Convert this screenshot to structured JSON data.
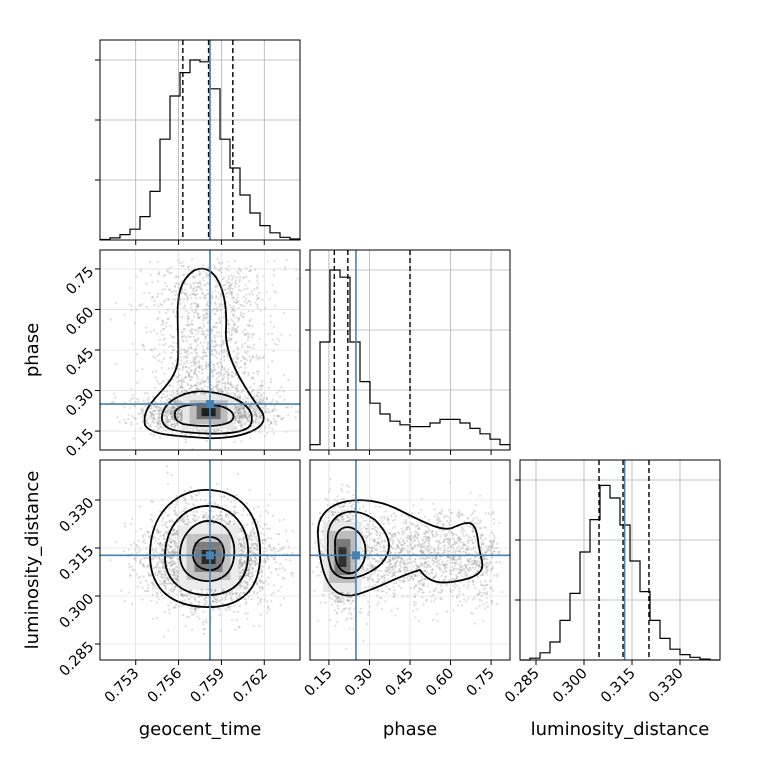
{
  "chart_data": {
    "type": "corner",
    "title": "",
    "parameters": [
      {
        "name": "geocent_time",
        "label": "geocent_time",
        "range": [
          0.7505,
          0.7645
        ],
        "ticks": [
          "0.753",
          "0.756",
          "0.759",
          "0.762"
        ],
        "tick_values": [
          0.753,
          0.756,
          0.759,
          0.762
        ],
        "truth": 0.7582,
        "quantiles": [
          0.7563,
          0.7581,
          0.7598
        ],
        "median": 0.7581
      },
      {
        "name": "phase",
        "label": "phase",
        "range": [
          0.08,
          0.82
        ],
        "ticks": [
          "0.15",
          "0.30",
          "0.45",
          "0.60",
          "0.75"
        ],
        "tick_values": [
          0.15,
          0.3,
          0.45,
          0.6,
          0.75
        ],
        "truth": 0.25,
        "quantiles": [
          0.17,
          0.22,
          0.45
        ],
        "median": 0.22
      },
      {
        "name": "luminosity_distance",
        "label": "luminosity_distance",
        "range": [
          0.28,
          0.3425
        ],
        "ticks": [
          "0.285",
          "0.300",
          "0.315",
          "0.330"
        ],
        "tick_values": [
          0.285,
          0.3,
          0.315,
          0.33
        ],
        "truth": 0.3127,
        "quantiles": [
          0.3047,
          0.3122,
          0.3203
        ],
        "median": 0.3122
      }
    ],
    "histograms": [
      {
        "parameter": "geocent_time",
        "counts": [
          0.003,
          0.012,
          0.03,
          0.06,
          0.13,
          0.27,
          0.56,
          0.8,
          0.93,
          1.0,
          0.99,
          0.84,
          0.56,
          0.4,
          0.25,
          0.15,
          0.08,
          0.04,
          0.015,
          0.006
        ]
      },
      {
        "parameter": "phase",
        "counts": [
          0.03,
          0.6,
          1.0,
          0.96,
          0.6,
          0.38,
          0.26,
          0.2,
          0.16,
          0.14,
          0.13,
          0.13,
          0.15,
          0.17,
          0.17,
          0.15,
          0.12,
          0.09,
          0.06,
          0.03
        ]
      },
      {
        "parameter": "luminosity_distance",
        "counts": [
          0.0,
          0.01,
          0.04,
          0.1,
          0.22,
          0.37,
          0.6,
          0.78,
          0.97,
          0.9,
          0.75,
          0.55,
          0.38,
          0.22,
          0.12,
          0.06,
          0.03,
          0.015,
          0.005,
          0.0
        ]
      }
    ],
    "truth_color": "#4682b4",
    "grid": true,
    "legend": "none"
  }
}
